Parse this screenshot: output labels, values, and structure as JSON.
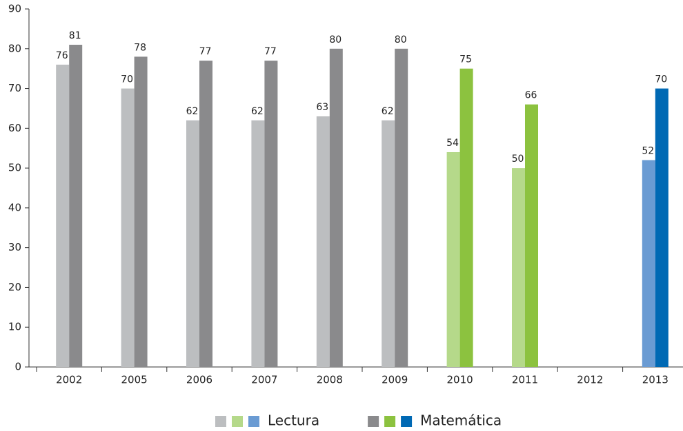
{
  "chart_data": {
    "type": "bar",
    "categories": [
      "2002",
      "2005",
      "2006",
      "2007",
      "2008",
      "2009",
      "2010",
      "2011",
      "2012",
      "2013"
    ],
    "series": [
      {
        "name": "Lectura",
        "values": [
          76,
          70,
          62,
          62,
          63,
          62,
          54,
          50,
          null,
          52
        ],
        "colors": [
          "#bcbec0",
          "#bcbec0",
          "#bcbec0",
          "#bcbec0",
          "#bcbec0",
          "#bcbec0",
          "#b5d98a",
          "#b5d98a",
          null,
          "#6a9bd3"
        ]
      },
      {
        "name": "Matemática",
        "values": [
          81,
          78,
          77,
          77,
          80,
          80,
          75,
          66,
          null,
          70
        ],
        "colors": [
          "#8a8a8c",
          "#8a8a8c",
          "#8a8a8c",
          "#8a8a8c",
          "#8a8a8c",
          "#8a8a8c",
          "#8cc23f",
          "#8cc23f",
          null,
          "#0069b4"
        ]
      }
    ],
    "ylim": [
      0,
      90
    ],
    "yticks": [
      0,
      10,
      20,
      30,
      40,
      50,
      60,
      70,
      80,
      90
    ],
    "grid": false,
    "legend": "bottom"
  }
}
